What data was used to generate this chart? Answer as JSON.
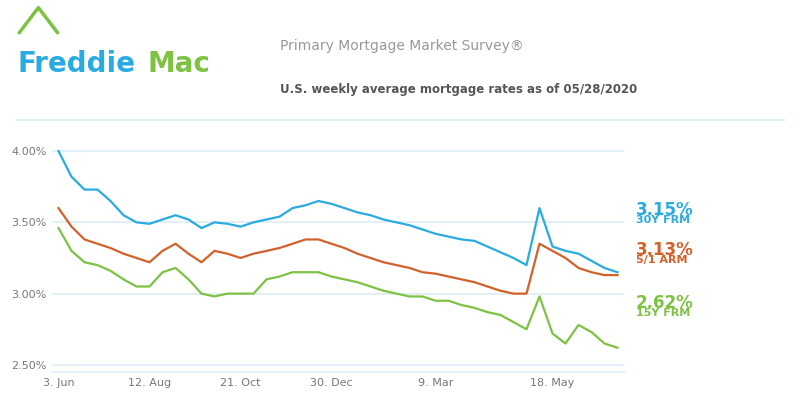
{
  "title_main": "Primary Mortgage Market Survey®",
  "title_sub": "U.S. weekly average mortgage rates as of 05/28/2020",
  "freddie_blue": "#29ABE2",
  "freddie_green": "#7DC242",
  "line_30y_color": "#29ABE2",
  "line_5y_color": "#D2612A",
  "line_15y_color": "#7DC242",
  "label_30y_pct": "3.15%",
  "label_30y_name": "30Y FRM",
  "label_5y_pct": "3.13%",
  "label_5y_name": "5/1 ARM",
  "label_15y_pct": "2.62%",
  "label_15y_name": "15Y FRM",
  "xtick_labels": [
    "3. Jun",
    "12. Aug",
    "21. Oct",
    "30. Dec",
    "9. Mar",
    "18. May"
  ],
  "ylim": [
    2.45,
    4.12
  ],
  "bg_color": "#FFFFFF",
  "grid_color": "#DDEEF5",
  "30y_frm": [
    4.0,
    3.82,
    3.73,
    3.73,
    3.65,
    3.55,
    3.5,
    3.49,
    3.52,
    3.55,
    3.52,
    3.46,
    3.5,
    3.49,
    3.47,
    3.5,
    3.52,
    3.54,
    3.6,
    3.62,
    3.65,
    3.63,
    3.6,
    3.57,
    3.55,
    3.52,
    3.5,
    3.48,
    3.45,
    3.42,
    3.4,
    3.38,
    3.37,
    3.33,
    3.29,
    3.25,
    3.2,
    3.6,
    3.33,
    3.3,
    3.28,
    3.23,
    3.18,
    3.15
  ],
  "5y_arm": [
    3.6,
    3.47,
    3.38,
    3.35,
    3.32,
    3.28,
    3.25,
    3.22,
    3.3,
    3.35,
    3.28,
    3.22,
    3.3,
    3.28,
    3.25,
    3.28,
    3.3,
    3.32,
    3.35,
    3.38,
    3.38,
    3.35,
    3.32,
    3.28,
    3.25,
    3.22,
    3.2,
    3.18,
    3.15,
    3.14,
    3.12,
    3.1,
    3.08,
    3.05,
    3.02,
    3.0,
    3.0,
    3.35,
    3.3,
    3.25,
    3.18,
    3.15,
    3.13,
    3.13
  ],
  "15y_frm": [
    3.46,
    3.3,
    3.22,
    3.2,
    3.16,
    3.1,
    3.05,
    3.05,
    3.15,
    3.18,
    3.1,
    3.0,
    2.98,
    3.0,
    3.0,
    3.0,
    3.1,
    3.12,
    3.15,
    3.15,
    3.15,
    3.12,
    3.1,
    3.08,
    3.05,
    3.02,
    3.0,
    2.98,
    2.98,
    2.95,
    2.95,
    2.92,
    2.9,
    2.87,
    2.85,
    2.8,
    2.75,
    2.98,
    2.72,
    2.65,
    2.78,
    2.73,
    2.65,
    2.62
  ]
}
